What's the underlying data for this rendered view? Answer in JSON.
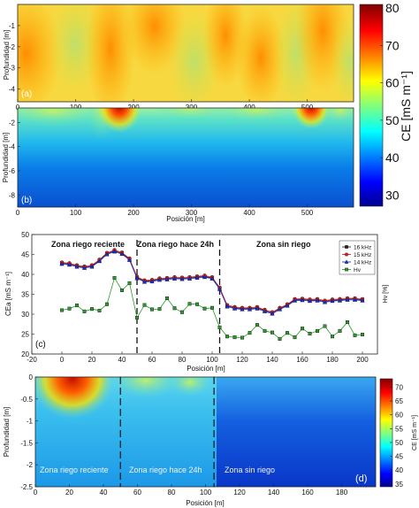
{
  "chart_data": [
    {
      "type": "heatmap",
      "panel": "(a)",
      "ylabel": "Profundidad [m]",
      "x_ticks": [
        "0",
        "100",
        "200",
        "300",
        "400",
        "500"
      ],
      "y_ticks": [
        "-1",
        "-2",
        "-3",
        "-4"
      ],
      "xlim": [
        0,
        580
      ],
      "ylim": [
        -4.6,
        0
      ]
    },
    {
      "type": "heatmap",
      "panel": "(b)",
      "xlabel": "Posición [m]",
      "ylabel": "Profundidad [m]",
      "x_ticks": [
        "0",
        "100",
        "200",
        "300",
        "400",
        "500"
      ],
      "y_ticks": [
        "-2",
        "-4",
        "-6",
        "-8"
      ],
      "xlim": [
        0,
        580
      ],
      "ylim": [
        -9,
        -0.8
      ],
      "colorbar": {
        "label": "CE [mS m⁻¹]",
        "ticks": [
          "80",
          "70",
          "60",
          "50",
          "40",
          "30"
        ],
        "range": [
          27,
          81
        ]
      }
    },
    {
      "type": "line",
      "panel": "(c)",
      "xlabel": "Posición [m]",
      "ylabel": "CEa [mS m⁻¹]",
      "y2label": "Hv [%]",
      "xlim": [
        -20,
        210
      ],
      "ylim": [
        20,
        50
      ],
      "x_ticks": [
        "-20",
        "0",
        "20",
        "40",
        "60",
        "80",
        "100",
        "120",
        "140",
        "160",
        "180",
        "200"
      ],
      "y_ticks": [
        "20",
        "25",
        "30",
        "35",
        "40",
        "45",
        "50"
      ],
      "zones": [
        "Zona riego reciente",
        "Zona riego hace 24h",
        "Zona sin riego"
      ],
      "zone_boundaries": [
        50,
        105
      ],
      "legend": "top-right",
      "x": [
        0,
        5,
        10,
        15,
        20,
        25,
        30,
        35,
        40,
        45,
        50,
        55,
        60,
        65,
        70,
        75,
        80,
        85,
        90,
        95,
        100,
        105,
        110,
        115,
        120,
        125,
        130,
        135,
        140,
        145,
        150,
        155,
        160,
        165,
        170,
        175,
        180,
        185,
        190,
        195,
        200
      ],
      "series": [
        {
          "name": "16 kHz",
          "color": "#222222",
          "marker": "square",
          "values": [
            42.8,
            42.6,
            42.1,
            41.8,
            42.1,
            43.5,
            45.2,
            45.9,
            45.3,
            43.8,
            39.2,
            38.3,
            38.4,
            38.8,
            38.9,
            39.1,
            39.0,
            39.1,
            39.3,
            39.5,
            39.1,
            36.5,
            32.1,
            31.6,
            31.4,
            31.4,
            31.6,
            30.9,
            30.3,
            31.4,
            32.3,
            33.6,
            33.7,
            33.5,
            33.6,
            33.2,
            33.5,
            33.6,
            33.8,
            33.8,
            33.6
          ]
        },
        {
          "name": "15 kHz",
          "color": "#e02020",
          "marker": "circle",
          "values": [
            43.0,
            42.8,
            42.3,
            42.0,
            42.3,
            43.7,
            45.4,
            46.1,
            45.5,
            44.0,
            39.4,
            38.5,
            38.6,
            39.0,
            39.1,
            39.3,
            39.2,
            39.3,
            39.5,
            39.7,
            39.3,
            36.7,
            32.3,
            31.8,
            31.6,
            31.6,
            31.8,
            31.1,
            30.5,
            31.6,
            32.5,
            33.8,
            33.9,
            33.7,
            33.8,
            33.4,
            33.7,
            33.8,
            34.0,
            34.0,
            33.8
          ]
        },
        {
          "name": "14 kHz",
          "color": "#1a2ee0",
          "marker": "triangle",
          "values": [
            42.6,
            42.4,
            41.9,
            41.6,
            41.9,
            43.3,
            45.0,
            45.7,
            45.1,
            43.6,
            39.0,
            38.1,
            38.2,
            38.6,
            38.7,
            38.9,
            38.8,
            38.9,
            39.1,
            39.3,
            38.9,
            36.3,
            31.9,
            31.4,
            31.2,
            31.2,
            31.4,
            30.7,
            30.1,
            31.2,
            32.1,
            33.4,
            33.5,
            33.3,
            33.4,
            33.0,
            33.3,
            33.4,
            33.6,
            33.6,
            33.4
          ]
        },
        {
          "name": "Hv",
          "color": "#2a9a2a",
          "marker": "square",
          "values": [
            31.0,
            31.4,
            32.2,
            30.7,
            31.3,
            30.9,
            32.5,
            39.1,
            36.0,
            37.8,
            29.1,
            32.3,
            31.2,
            31.3,
            34.0,
            31.5,
            30.5,
            32.6,
            32.5,
            31.4,
            31.6,
            26.7,
            24.4,
            24.2,
            24.1,
            25.3,
            27.3,
            25.8,
            25.4,
            23.8,
            25.3,
            24.2,
            26.4,
            25.1,
            25.8,
            27.0,
            24.4,
            25.8,
            28.0,
            24.7,
            24.9
          ]
        }
      ]
    },
    {
      "type": "heatmap",
      "panel": "(d)",
      "xlabel": "Posición [m]",
      "ylabel": "Profundidad [m]",
      "x_ticks": [
        "0",
        "20",
        "40",
        "60",
        "80",
        "100",
        "120",
        "140",
        "160",
        "180"
      ],
      "y_ticks": [
        "0",
        "-0.5",
        "-1",
        "-1.5",
        "-2",
        "-2.5"
      ],
      "xlim": [
        0,
        200
      ],
      "ylim": [
        -2.5,
        0
      ],
      "zones": [
        "Zona riego reciente",
        "Zona riego hace 24h",
        "Zona sin riego"
      ],
      "zone_boundaries": [
        50,
        105
      ],
      "colorbar": {
        "label": "CE [mS m⁻¹]",
        "ticks": [
          "70",
          "65",
          "60",
          "55",
          "50",
          "45",
          "40",
          "35"
        ],
        "range": [
          34,
          73
        ]
      }
    }
  ]
}
